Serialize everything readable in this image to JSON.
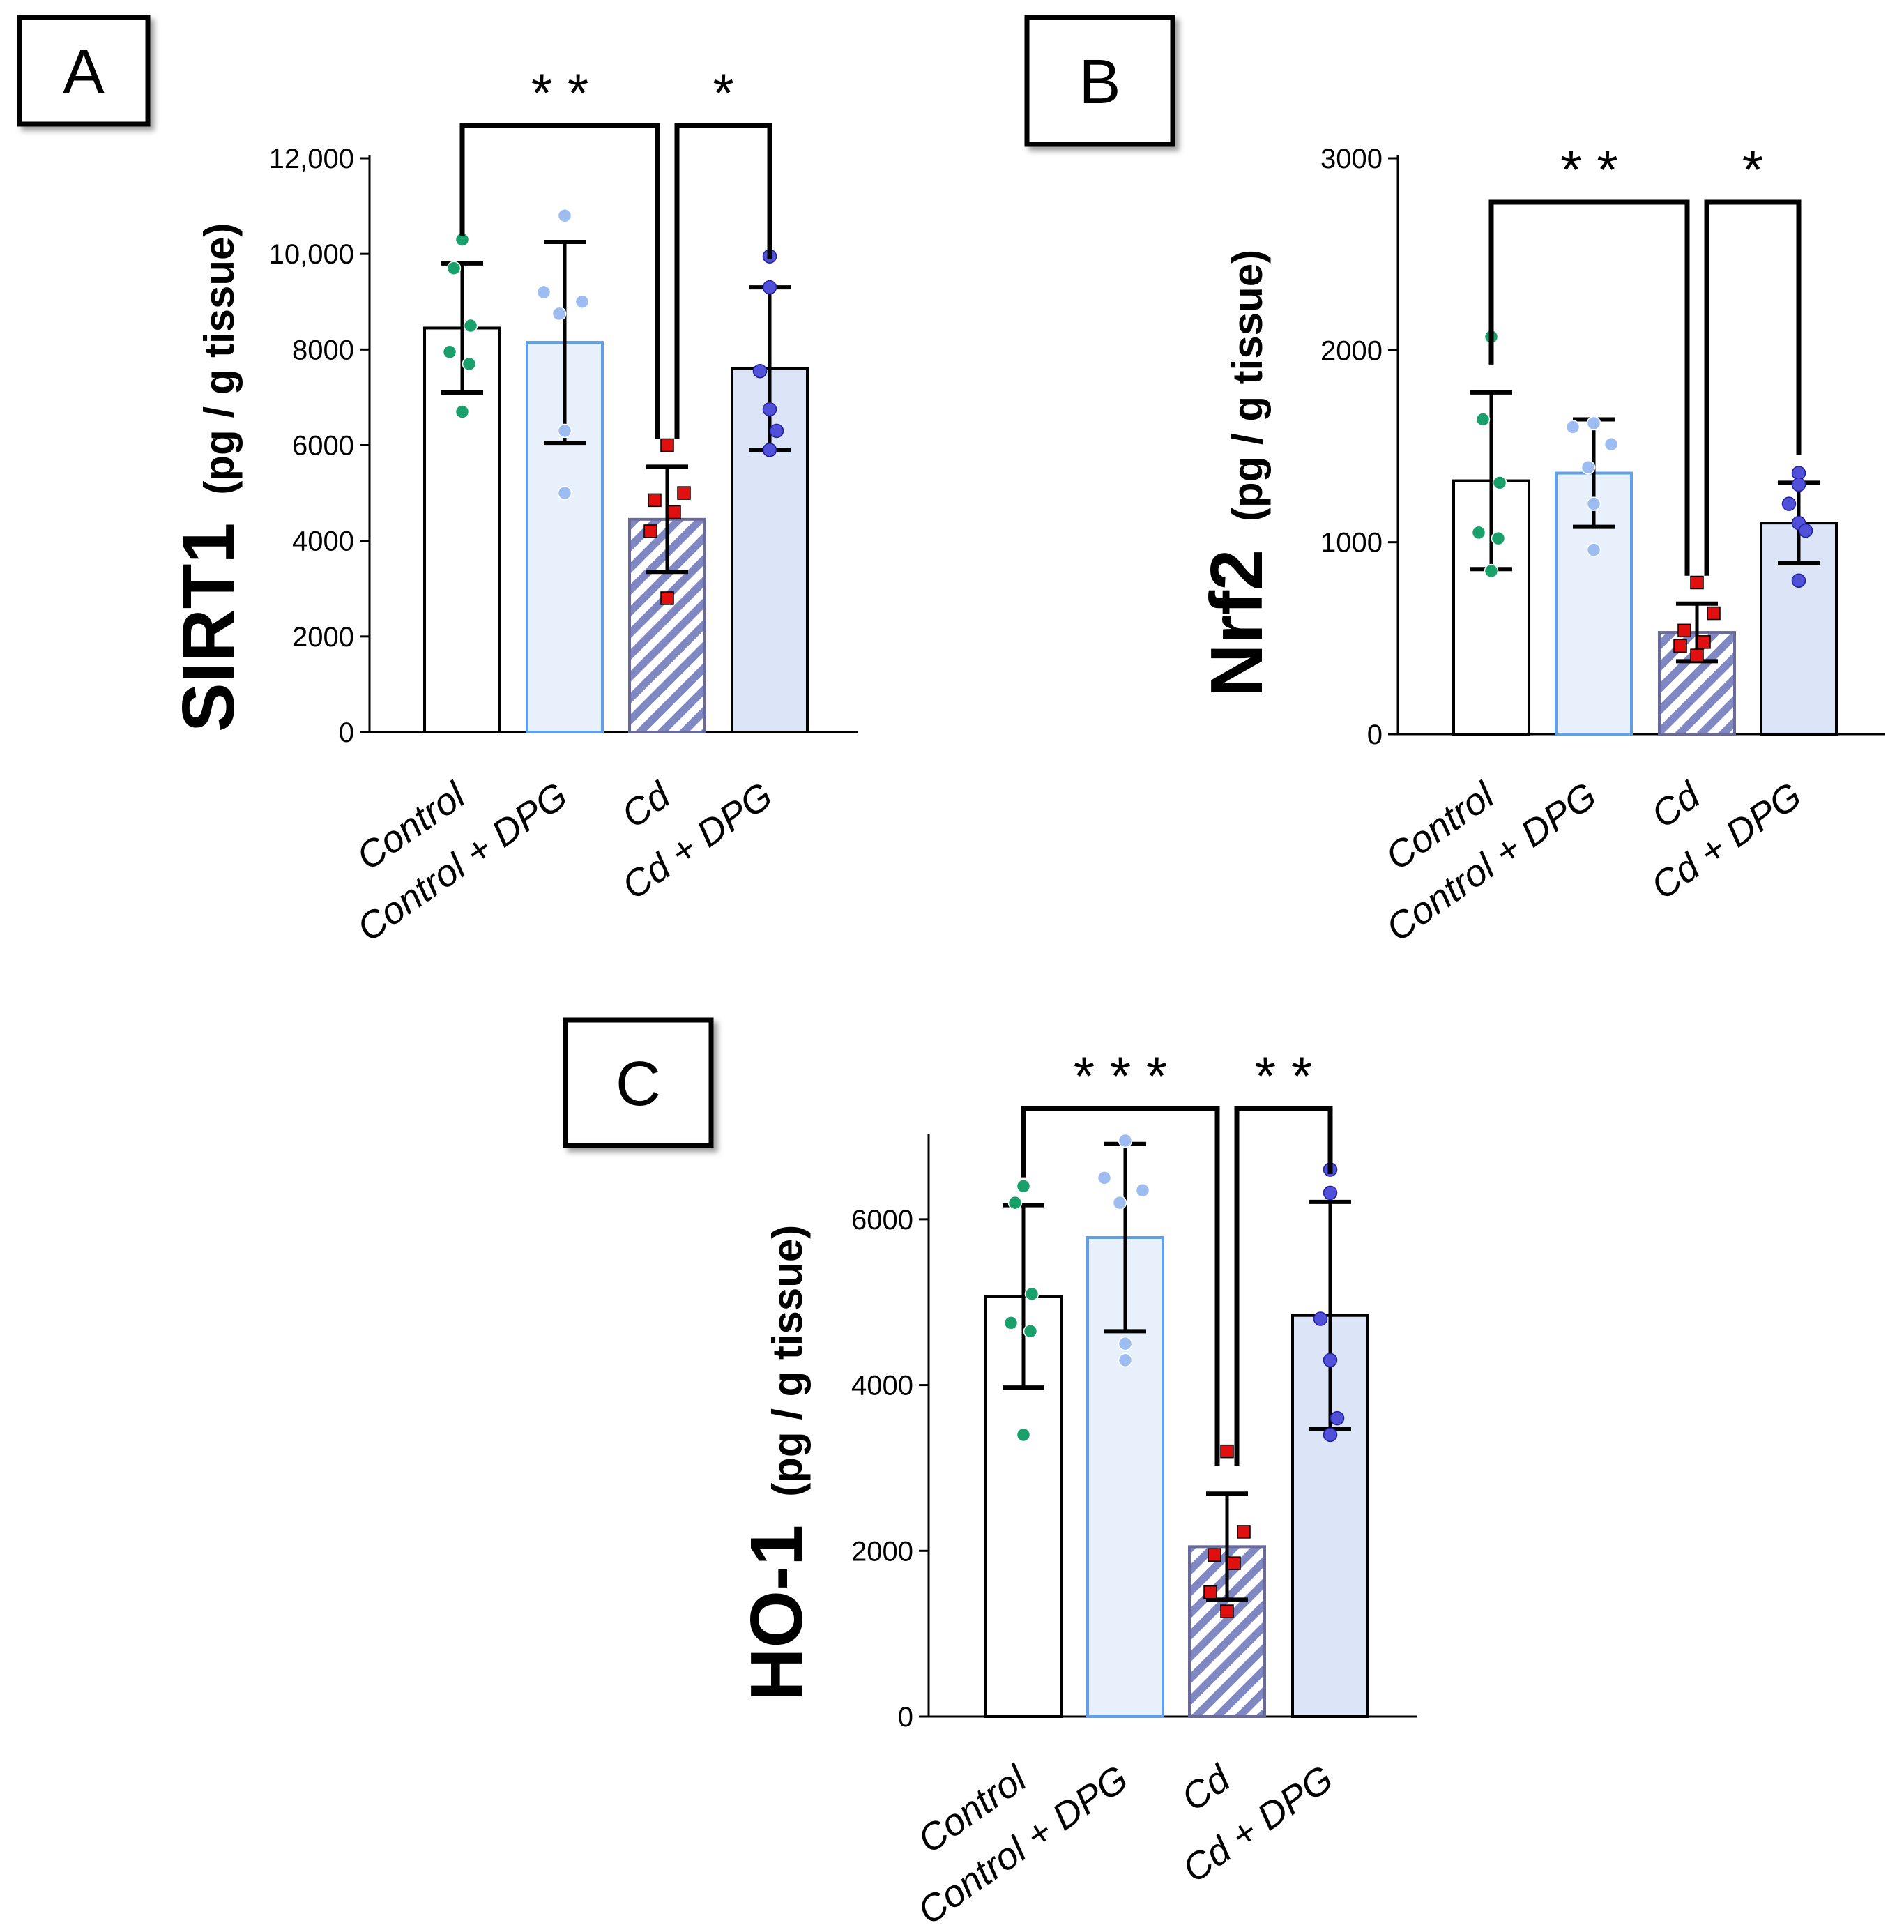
{
  "colors": {
    "control": "#ffffff",
    "control_dpg": "#e8f0fc",
    "cd_hatch": "#8088c4",
    "cd_dpg": "#dce5f8",
    "control_dpg_border": "#5fa0e8",
    "dot_control": "#1aa06a",
    "dot_control_dpg": "#9dbdf2",
    "dot_cd": "#e01010",
    "dot_cd_dpg": "#5050d8"
  },
  "chart_data": [
    {
      "panel": "A",
      "type": "bar",
      "ylabel_main": "SIRT1",
      "ylabel_unit": "(pg / g tissue)",
      "ylim": [
        0,
        12000
      ],
      "yticks": [
        0,
        2000,
        4000,
        6000,
        8000,
        10000,
        12000
      ],
      "ytick_labels": [
        "0",
        "2000",
        "4000",
        "6000",
        "8000",
        "10,000",
        "12,000"
      ],
      "categories": [
        "Control",
        "Control + DPG",
        "Cd",
        "Cd + DPG"
      ],
      "values": [
        8450,
        8150,
        4450,
        7600
      ],
      "errors": [
        1350,
        2100,
        1100,
        1700
      ],
      "points": [
        [
          10300,
          9700,
          8500,
          7950,
          7700,
          6700
        ],
        [
          10800,
          9200,
          9000,
          8750,
          6300,
          5000
        ],
        [
          6000,
          5000,
          4850,
          4600,
          4200,
          2800
        ],
        [
          9950,
          9300,
          7550,
          6750,
          6300,
          5900
        ]
      ],
      "significance": [
        {
          "from": 0,
          "to": 2,
          "label": "* *"
        },
        {
          "from": 2,
          "to": 3,
          "label": "*"
        }
      ]
    },
    {
      "panel": "B",
      "type": "bar",
      "ylabel_main": "Nrf2",
      "ylabel_unit": "(pg / g tissue)",
      "ylim": [
        0,
        3000
      ],
      "yticks": [
        0,
        1000,
        2000,
        3000
      ],
      "ytick_labels": [
        "0",
        "1000",
        "2000",
        "3000"
      ],
      "categories": [
        "Control",
        "Control + DPG",
        "Cd",
        "Cd + DPG"
      ],
      "values": [
        1320,
        1360,
        530,
        1100
      ],
      "errors": [
        460,
        280,
        150,
        210
      ],
      "points": [
        [
          2070,
          1640,
          1310,
          1050,
          1020,
          850
        ],
        [
          1620,
          1600,
          1510,
          1390,
          1200,
          960
        ],
        [
          790,
          630,
          540,
          480,
          460,
          410
        ],
        [
          1360,
          1300,
          1200,
          1100,
          1060,
          800
        ]
      ],
      "significance": [
        {
          "from": 0,
          "to": 2,
          "label": "* *"
        },
        {
          "from": 2,
          "to": 3,
          "label": "*"
        }
      ]
    },
    {
      "panel": "C",
      "type": "bar",
      "ylabel_main": "HO-1",
      "ylabel_unit": "(pg / g tissue)",
      "ylim": [
        0,
        7000
      ],
      "yticks": [
        0,
        2000,
        4000,
        6000
      ],
      "ytick_labels": [
        "0",
        "2000",
        "4000",
        "6000"
      ],
      "categories": [
        "Control",
        "Control + DPG",
        "Cd",
        "Cd + DPG"
      ],
      "values": [
        5070,
        5780,
        2050,
        4840
      ],
      "errors": [
        1100,
        1130,
        640,
        1370
      ],
      "points": [
        [
          6400,
          6200,
          5100,
          4750,
          4650,
          3400
        ],
        [
          6950,
          6500,
          6350,
          6200,
          4500,
          4300
        ],
        [
          3200,
          2230,
          1950,
          1850,
          1500,
          1270
        ],
        [
          6600,
          6320,
          4800,
          4300,
          3600,
          3400
        ]
      ],
      "significance": [
        {
          "from": 0,
          "to": 2,
          "label": "* * *"
        },
        {
          "from": 2,
          "to": 3,
          "label": "* *"
        }
      ]
    }
  ]
}
